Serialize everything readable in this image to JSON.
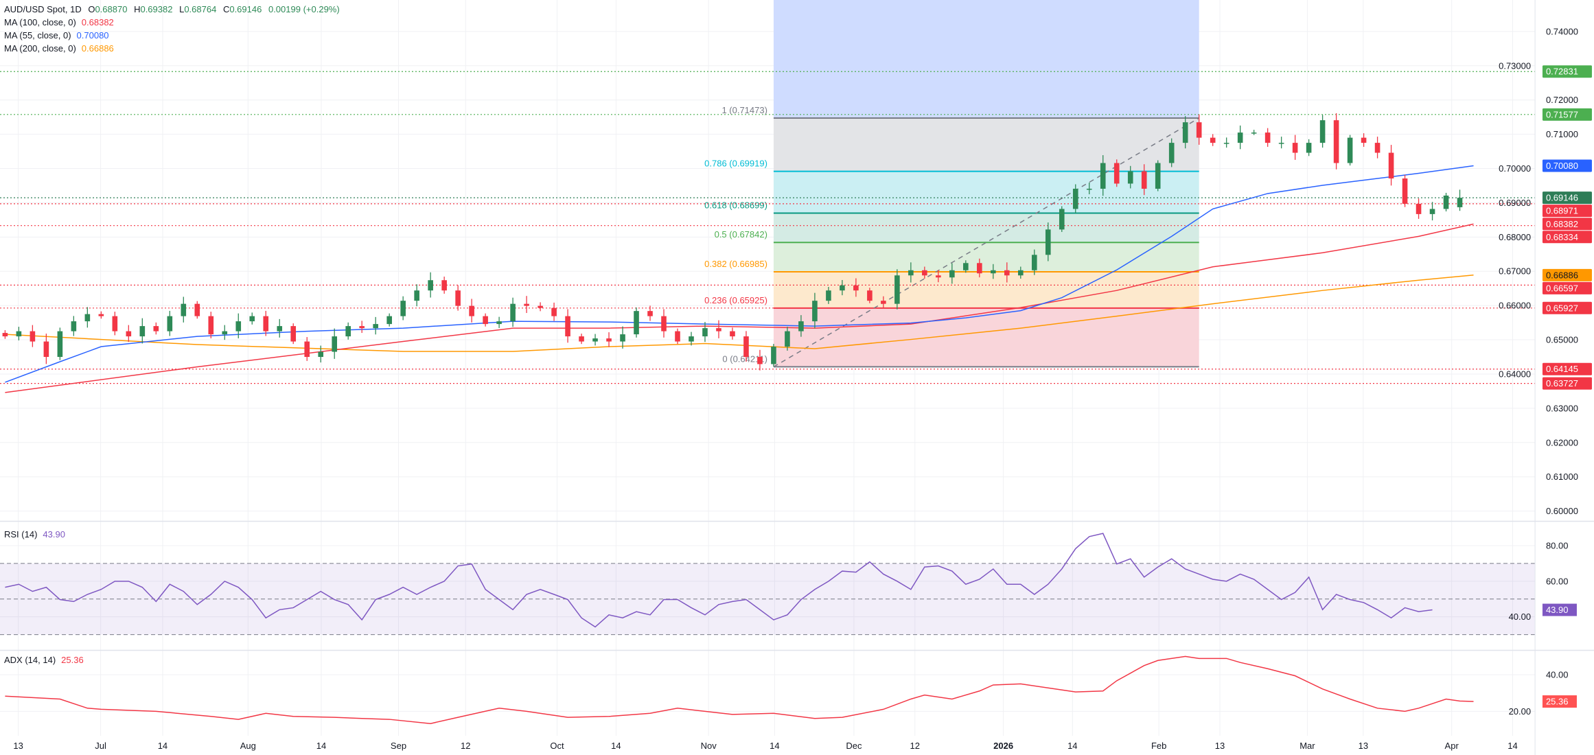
{
  "legend": {
    "symbol": "AUD/USD Spot, 1D",
    "o_label": "O",
    "open": "0.68870",
    "h_label": "H",
    "high": "0.69382",
    "l_label": "L",
    "low": "0.68764",
    "c_label": "C",
    "close": "0.69146",
    "change": "0.00199 (+0.29%)",
    "ma100_label": "MA (100, close, 0)",
    "ma100_value": "0.68382",
    "ma55_label": "MA (55, close, 0)",
    "ma55_value": "0.70080",
    "ma200_label": "MA (200, close, 0)",
    "ma200_value": "0.66886"
  },
  "rsi_legend": {
    "label": "RSI (14)",
    "value": "43.90"
  },
  "adx_legend": {
    "label": "ADX (14, 14)",
    "value": "25.36"
  },
  "colors": {
    "up": "#2e8a57",
    "down": "#f23645",
    "ma55": "#2962ff",
    "ma100": "#f23645",
    "ma200": "#ff9800",
    "rsi": "#7e57c2",
    "adx": "#f23645",
    "fib_zone": "#cfdcff"
  },
  "price_axis": [
    "0.74000",
    "0.73000",
    "0.72000",
    "0.71000",
    "0.70000",
    "0.69000",
    "0.68000",
    "0.67000",
    "0.66000",
    "0.65000",
    "0.64000",
    "0.63000",
    "0.62000",
    "0.61000",
    "0.60000"
  ],
  "rsi_axis": [
    "80.00",
    "60.00",
    "40.00"
  ],
  "adx_axis": [
    "40.00",
    "20.00"
  ],
  "time_axis": [
    "13",
    "Jul",
    "14",
    "Aug",
    "14",
    "Sep",
    "12",
    "Oct",
    "14",
    "Nov",
    "14",
    "Dec",
    "12",
    "2026",
    "14",
    "Feb",
    "13",
    "Mar",
    "13",
    "Apr",
    "14"
  ],
  "price_badges": [
    {
      "value": "0.72831",
      "bg": "#4caf50",
      "fg": "#ffffff"
    },
    {
      "value": "0.71577",
      "bg": "#4caf50",
      "fg": "#ffffff"
    },
    {
      "value": "0.70080",
      "bg": "#2962ff",
      "fg": "#ffffff"
    },
    {
      "value": "0.69146",
      "bg": "#2e7d57",
      "fg": "#ffffff"
    },
    {
      "value": "0.68971",
      "bg": "#f23645",
      "fg": "#ffffff"
    },
    {
      "value": "0.68382",
      "bg": "#f23645",
      "fg": "#ffffff"
    },
    {
      "value": "0.68334",
      "bg": "#f23645",
      "fg": "#ffffff"
    },
    {
      "value": "0.66886",
      "bg": "#ff9800",
      "fg": "#131722"
    },
    {
      "value": "0.66597",
      "bg": "#f23645",
      "fg": "#ffffff"
    },
    {
      "value": "0.65927",
      "bg": "#f23645",
      "fg": "#ffffff"
    },
    {
      "value": "0.64145",
      "bg": "#f23645",
      "fg": "#ffffff"
    },
    {
      "value": "0.63727",
      "bg": "#f23645",
      "fg": "#ffffff"
    }
  ],
  "level_lines": [
    {
      "value": 0.72831,
      "color": "#4caf50"
    },
    {
      "value": 0.71577,
      "color": "#4caf50"
    },
    {
      "value": 0.69146,
      "color": "#2e7d57"
    },
    {
      "value": 0.68971,
      "color": "#f23645"
    },
    {
      "value": 0.68334,
      "color": "#f23645"
    },
    {
      "value": 0.66597,
      "color": "#f23645"
    },
    {
      "value": 0.65927,
      "color": "#f23645"
    },
    {
      "value": 0.64145,
      "color": "#f23645"
    },
    {
      "value": 0.63727,
      "color": "#f23645"
    }
  ],
  "rsi_badge": {
    "value": "43.90",
    "bg": "#7e57c2"
  },
  "adx_badge": {
    "value": "25.36",
    "bg": "#ff5252"
  },
  "fibonacci": {
    "start_bar": 56,
    "end_bar": 87,
    "levels": [
      {
        "label": "1 (0.71473)",
        "value": 0.71473,
        "color": "#787b86",
        "fill": "#e3e4e7"
      },
      {
        "label": "0.786 (0.69919)",
        "value": 0.69919,
        "color": "#00bcd4",
        "fill": "#cbeff3"
      },
      {
        "label": "0.618 (0.68699)",
        "value": 0.68699,
        "color": "#089981",
        "fill": "#d4ebe4"
      },
      {
        "label": "0.5 (0.67842)",
        "value": 0.67842,
        "color": "#4caf50",
        "fill": "#ddefdc"
      },
      {
        "label": "0.382 (0.66985)",
        "value": 0.66985,
        "color": "#ff9800",
        "fill": "#fde9cd"
      },
      {
        "label": "0.236 (0.65925)",
        "value": 0.65925,
        "color": "#f23645",
        "fill": "#f9d5da"
      },
      {
        "label": "0 (0.64211)",
        "value": 0.64211,
        "color": "#787b86",
        "fill": null
      }
    ]
  },
  "chart_data": {
    "type": "candlestick",
    "title": "AUD/USD Spot, 1D",
    "ylim": [
      0.597,
      0.7466
    ],
    "last_bar": {
      "open": 0.6887,
      "high": 0.69382,
      "low": 0.68764,
      "close": 0.69146
    },
    "closes": [
      0.651,
      0.6525,
      0.6495,
      0.645,
      0.6525,
      0.6554,
      0.6575,
      0.6569,
      0.6525,
      0.651,
      0.654,
      0.6525,
      0.6569,
      0.6605,
      0.6569,
      0.6516,
      0.6525,
      0.6554,
      0.6569,
      0.6525,
      0.654,
      0.6495,
      0.645,
      0.6465,
      0.651,
      0.654,
      0.6534,
      0.6546,
      0.6569,
      0.6614,
      0.6644,
      0.6674,
      0.6644,
      0.6599,
      0.6569,
      0.6546,
      0.6554,
      0.6605,
      0.6599,
      0.6593,
      0.6569,
      0.651,
      0.6495,
      0.6504,
      0.6495,
      0.6516,
      0.6584,
      0.6569,
      0.6525,
      0.6495,
      0.651,
      0.6534,
      0.6525,
      0.651,
      0.645,
      0.6429,
      0.648,
      0.6525,
      0.6554,
      0.6614,
      0.6644,
      0.6659,
      0.6644,
      0.6614,
      0.6605,
      0.6688,
      0.6703,
      0.6688,
      0.6682,
      0.6703,
      0.6724,
      0.6694,
      0.6703,
      0.6688,
      0.6703,
      0.6748,
      0.6822,
      0.6882,
      0.6941,
      0.6941,
      0.7016,
      0.6956,
      0.6992,
      0.6941,
      0.7016,
      0.7075,
      0.7135,
      0.709,
      0.7075,
      0.7075,
      0.7105,
      0.7105,
      0.7075,
      0.7075,
      0.7046,
      0.7075,
      0.7141,
      0.7016,
      0.709,
      0.7075,
      0.7046,
      0.6971,
      0.6897,
      0.6867,
      0.6882,
      0.6921,
      0.6912
    ],
    "ma55": [
      [
        0,
        0.6376
      ],
      [
        4,
        0.6436
      ],
      [
        7,
        0.648
      ],
      [
        14,
        0.651
      ],
      [
        22,
        0.6525
      ],
      [
        29,
        0.6534
      ],
      [
        37,
        0.6554
      ],
      [
        44,
        0.6552
      ],
      [
        51,
        0.6546
      ],
      [
        59,
        0.654
      ],
      [
        66,
        0.6549
      ],
      [
        70,
        0.6564
      ],
      [
        74,
        0.6585
      ],
      [
        77,
        0.6623
      ],
      [
        81,
        0.6704
      ],
      [
        85,
        0.6802
      ],
      [
        88,
        0.6882
      ],
      [
        92,
        0.6927
      ],
      [
        96,
        0.6951
      ],
      [
        100,
        0.6971
      ],
      [
        103,
        0.6986
      ],
      [
        107,
        0.7008
      ]
    ],
    "ma100": [
      [
        0,
        0.6346
      ],
      [
        14,
        0.6421
      ],
      [
        29,
        0.6495
      ],
      [
        37,
        0.6534
      ],
      [
        44,
        0.6534
      ],
      [
        51,
        0.654
      ],
      [
        59,
        0.6534
      ],
      [
        66,
        0.6546
      ],
      [
        74,
        0.6594
      ],
      [
        81,
        0.6644
      ],
      [
        88,
        0.6713
      ],
      [
        96,
        0.6754
      ],
      [
        103,
        0.6802
      ],
      [
        107,
        0.6838
      ]
    ],
    "ma200": [
      [
        0,
        0.6516
      ],
      [
        14,
        0.6486
      ],
      [
        29,
        0.6466
      ],
      [
        37,
        0.6466
      ],
      [
        44,
        0.648
      ],
      [
        51,
        0.6489
      ],
      [
        59,
        0.6474
      ],
      [
        66,
        0.6501
      ],
      [
        74,
        0.6534
      ],
      [
        81,
        0.6569
      ],
      [
        88,
        0.6605
      ],
      [
        96,
        0.6644
      ],
      [
        103,
        0.6674
      ],
      [
        107,
        0.6689
      ]
    ],
    "rsi": {
      "ylim": [
        25,
        95
      ],
      "bands": [
        30,
        50,
        70
      ],
      "values": [
        56.6,
        58.3,
        54.3,
        56.6,
        49.7,
        48.6,
        52.6,
        55.4,
        60,
        60,
        56.6,
        48.6,
        58.3,
        54.3,
        46.9,
        52.6,
        60,
        56.6,
        49.7,
        39.4,
        44,
        45.1,
        49.7,
        54.3,
        49.7,
        46.9,
        38.3,
        49.7,
        52.6,
        56.6,
        52.6,
        56.6,
        60,
        68.6,
        69.7,
        55.4,
        49.7,
        44,
        52.6,
        55.4,
        52.6,
        49.7,
        39.4,
        34.3,
        41.1,
        39.4,
        42.9,
        41.1,
        49.7,
        49.7,
        45.1,
        41.1,
        46.9,
        48.6,
        49.7,
        44,
        38.3,
        41.1,
        49.7,
        55.4,
        60,
        65.7,
        65.1,
        70.9,
        64,
        60,
        55.4,
        68,
        68.6,
        65.7,
        58.3,
        61.1,
        66.9,
        58.3,
        58.3,
        52.6,
        58.3,
        66.9,
        78.3,
        85.1,
        86.9,
        69.7,
        72.6,
        62.3,
        68,
        72.6,
        66.9,
        64,
        61.1,
        60,
        64,
        61.1,
        55.4,
        49.7,
        53.7,
        62.3,
        44,
        52.6,
        49.7,
        48,
        44,
        39.4,
        45.1,
        42.9,
        43.9
      ]
    },
    "adx": {
      "ylim": [
        8,
        57
      ],
      "points": [
        [
          0,
          28.3
        ],
        [
          4,
          26.7
        ],
        [
          6,
          21.7
        ],
        [
          7,
          21.1
        ],
        [
          11,
          20
        ],
        [
          15,
          17.2
        ],
        [
          17,
          15.6
        ],
        [
          19,
          18.9
        ],
        [
          21,
          17.2
        ],
        [
          24,
          16.7
        ],
        [
          26,
          16.1
        ],
        [
          28,
          15.6
        ],
        [
          31,
          13.3
        ],
        [
          33,
          16.7
        ],
        [
          36,
          21.7
        ],
        [
          38,
          20
        ],
        [
          41,
          16.7
        ],
        [
          44,
          17.2
        ],
        [
          47,
          18.9
        ],
        [
          49,
          21.7
        ],
        [
          51,
          20
        ],
        [
          53,
          18.3
        ],
        [
          56,
          18.9
        ],
        [
          59,
          16.1
        ],
        [
          61,
          16.7
        ],
        [
          64,
          21.1
        ],
        [
          66,
          26.7
        ],
        [
          67,
          28.9
        ],
        [
          69,
          26.7
        ],
        [
          71,
          31.1
        ],
        [
          72,
          34.4
        ],
        [
          74,
          35
        ],
        [
          76,
          32.8
        ],
        [
          78,
          30.6
        ],
        [
          80,
          31.1
        ],
        [
          81,
          36.7
        ],
        [
          83,
          45
        ],
        [
          84,
          47.8
        ],
        [
          86,
          50
        ],
        [
          87,
          48.9
        ],
        [
          89,
          48.9
        ],
        [
          90,
          46.7
        ],
        [
          92,
          43.3
        ],
        [
          94,
          39.4
        ],
        [
          96,
          32.2
        ],
        [
          98,
          26.7
        ],
        [
          100,
          21.7
        ],
        [
          102,
          20
        ],
        [
          103,
          21.7
        ],
        [
          105,
          26.7
        ],
        [
          106,
          25.6
        ],
        [
          107,
          25.36
        ]
      ]
    }
  }
}
